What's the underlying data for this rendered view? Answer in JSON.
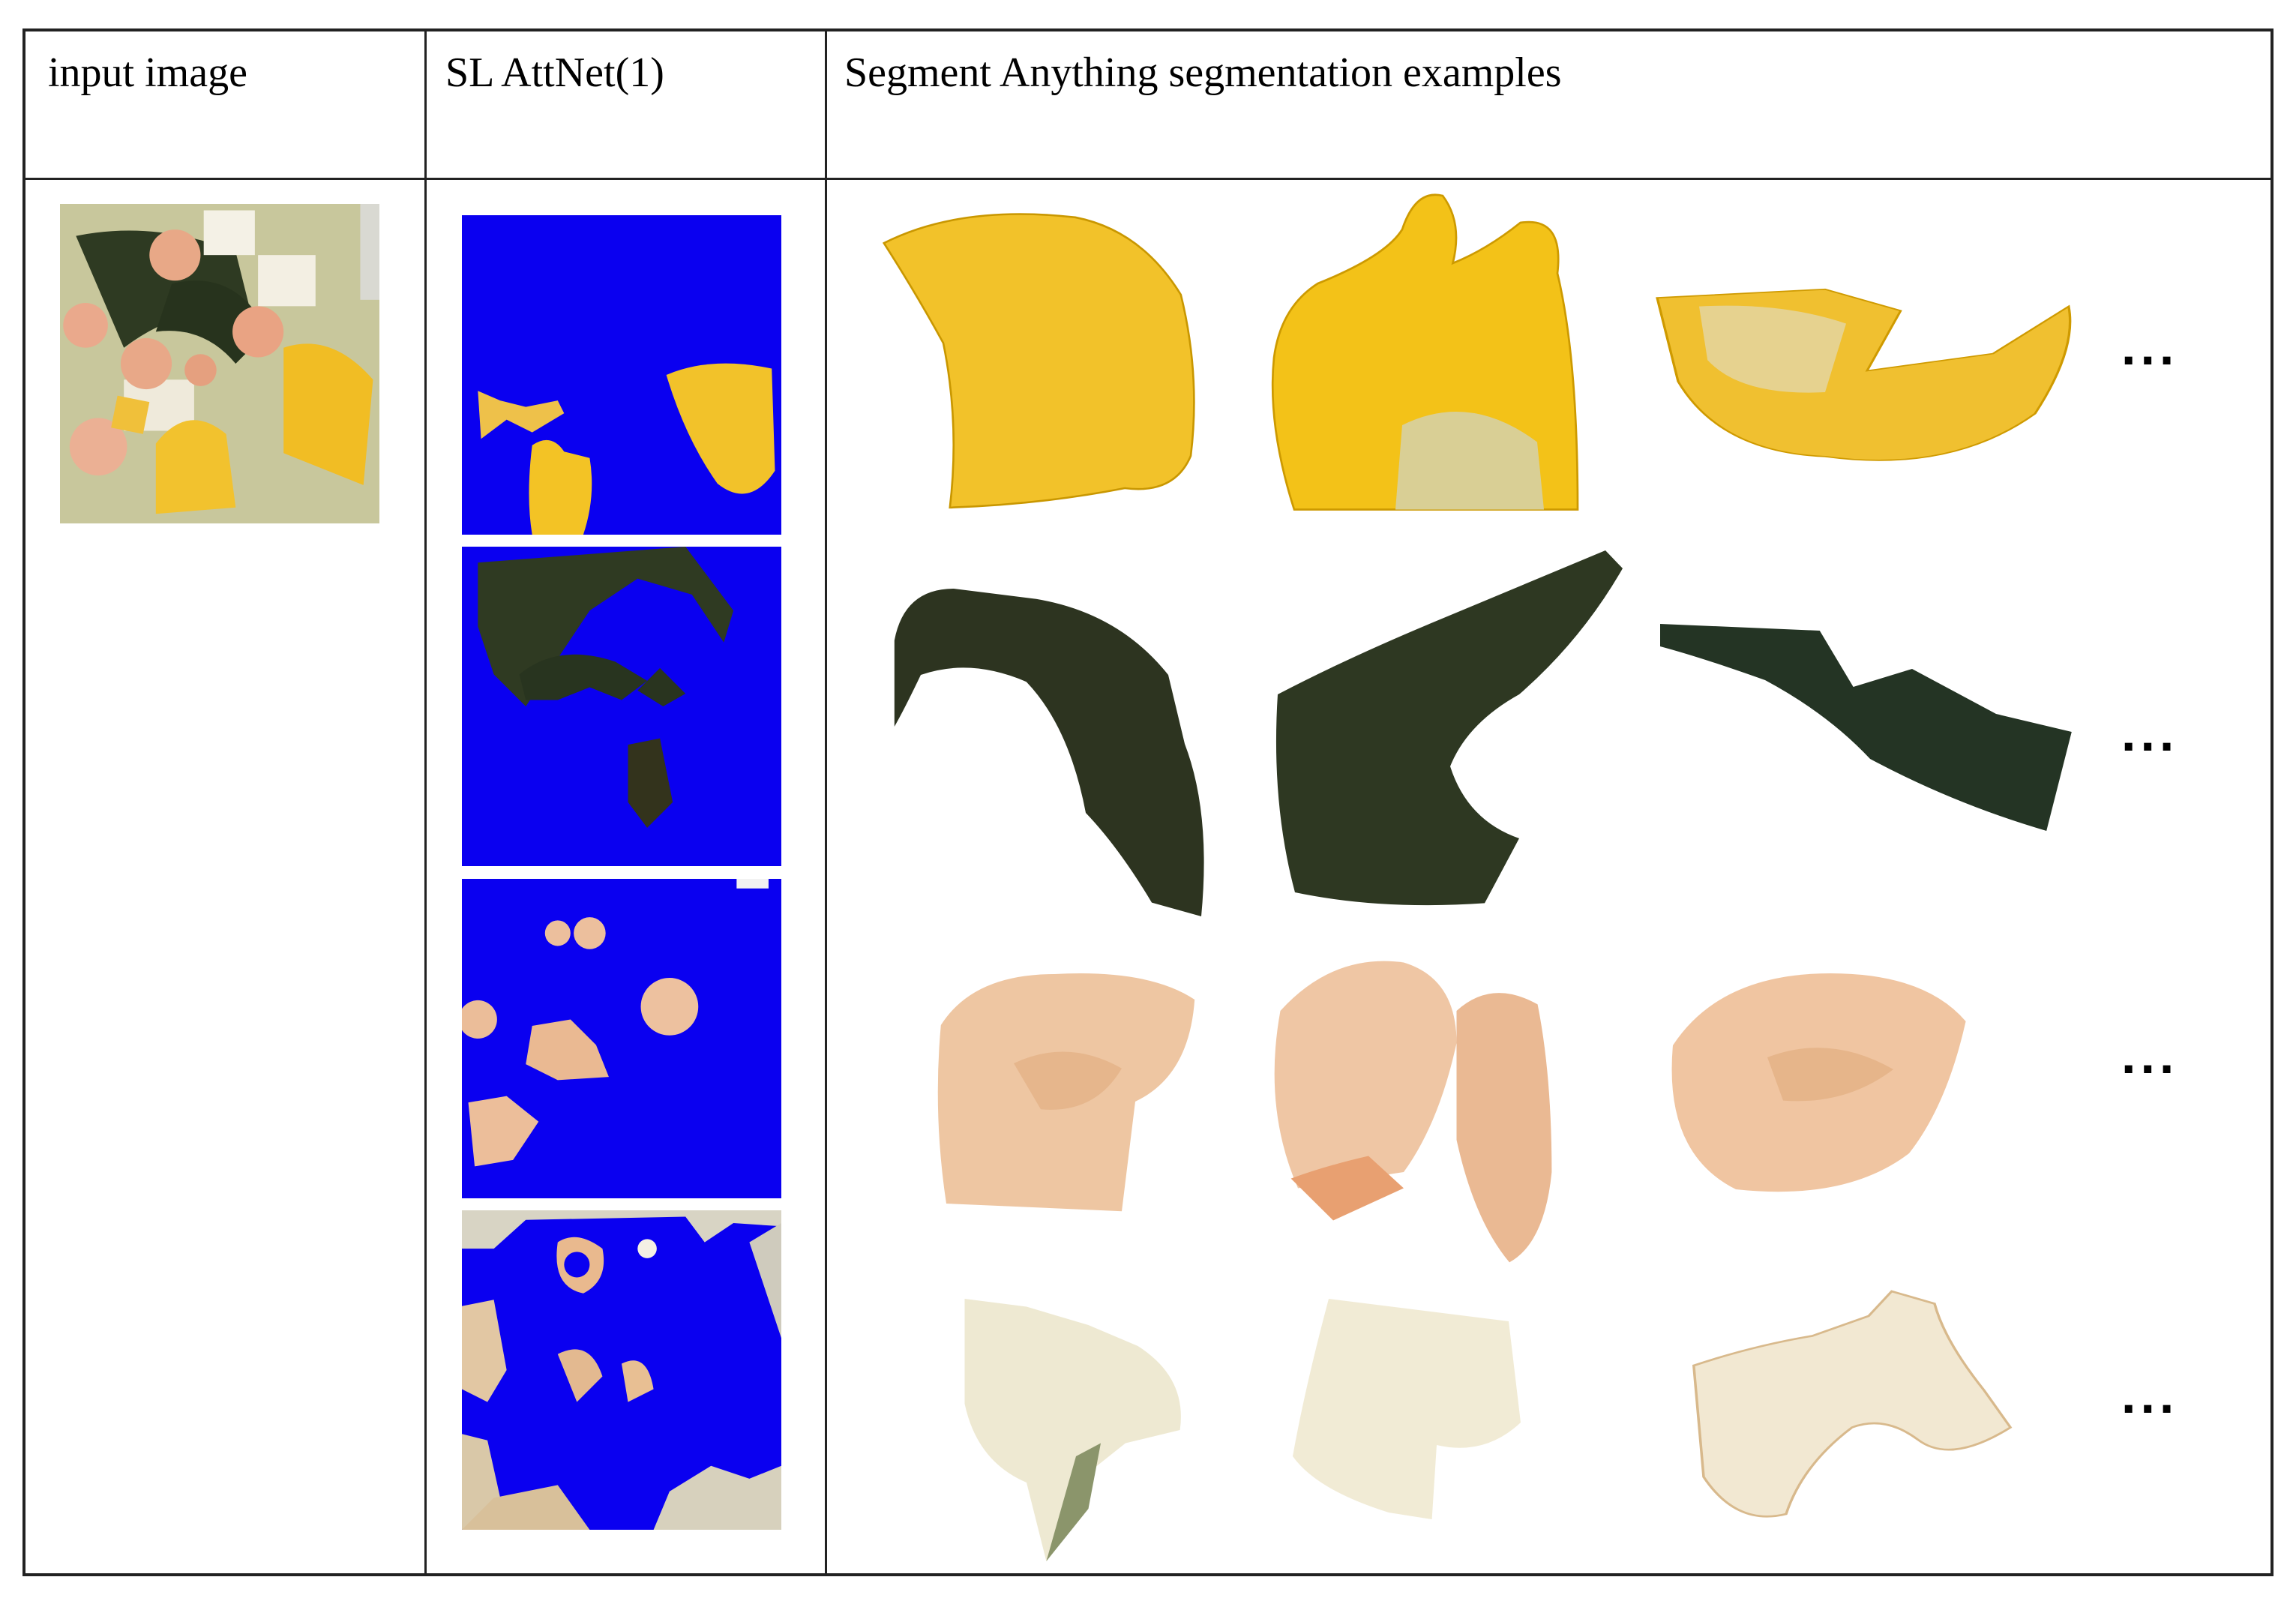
{
  "table": {
    "headers": {
      "col1": "input image",
      "col2": "SL AttNet(1)",
      "col3": "Segment Anything segmentation examples"
    },
    "ellipsis": [
      "...",
      "...",
      "...",
      "..."
    ]
  },
  "colors": {
    "mask_background": "#0a00f0",
    "corn": "#f2c02a",
    "kelp": "#2f3b22",
    "shrimp": "#ecc4a0",
    "tofu": "#eee8cf"
  }
}
